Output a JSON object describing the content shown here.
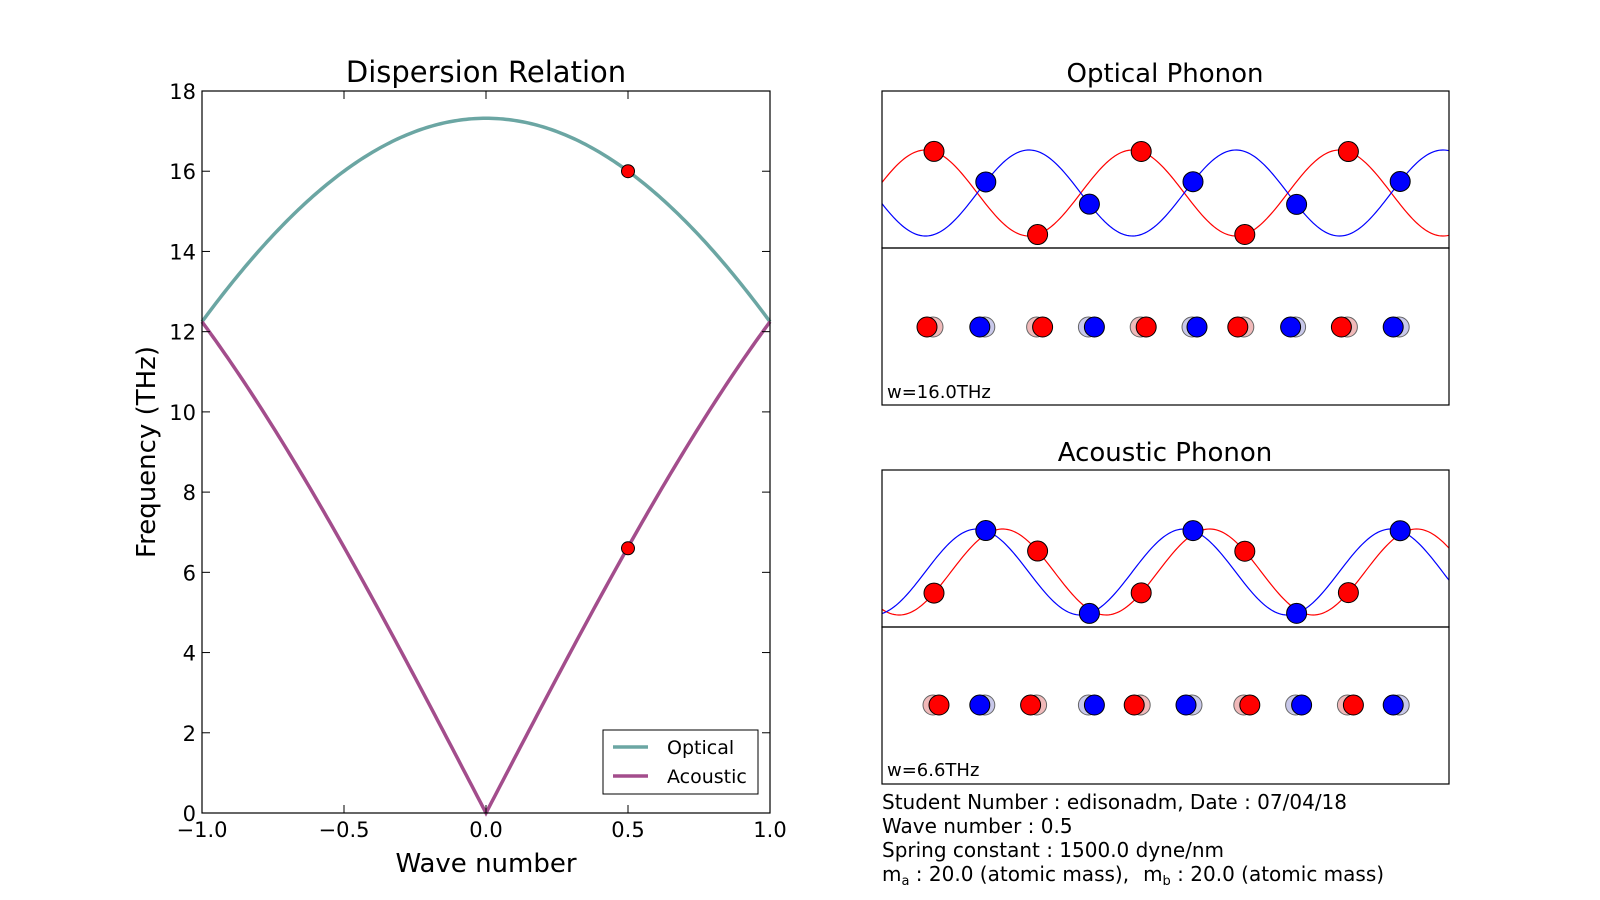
{
  "colors": {
    "optical": "#6ba6a3",
    "acoustic": "#a34d8c",
    "atom_a": "#ff0000",
    "atom_b": "#0000ff",
    "marker": "#ff0000"
  },
  "chart_data": [
    {
      "type": "line",
      "title": "Dispersion Relation",
      "xlabel": "Wave number",
      "ylabel": "Frequency (THz)",
      "xlim": [
        -1.0,
        1.0
      ],
      "ylim": [
        0,
        18
      ],
      "xticks": [
        "−1.0",
        "−0.5",
        "0.0",
        "0.5",
        "1.0"
      ],
      "xtick_values": [
        -1.0,
        -0.5,
        0.0,
        0.5,
        1.0
      ],
      "yticks": [
        "0",
        "2",
        "4",
        "6",
        "8",
        "10",
        "12",
        "14",
        "16",
        "18"
      ],
      "ytick_values": [
        0,
        2,
        4,
        6,
        8,
        10,
        12,
        14,
        16,
        18
      ],
      "grid": false,
      "legend": "bottom-right",
      "series": [
        {
          "name": "Optical",
          "max_frequency": 17.32,
          "edge_frequency": 12.25
        },
        {
          "name": "Acoustic",
          "max_frequency": 0,
          "edge_frequency": 12.25
        }
      ],
      "markers": [
        {
          "x": 0.5,
          "y": 16.0
        },
        {
          "x": 0.5,
          "y": 6.6
        }
      ]
    },
    {
      "type": "line",
      "title": "Optical Phonon",
      "annotation": "w=16.0THz",
      "wave_number": 0.5,
      "mode": "optical"
    },
    {
      "type": "line",
      "title": "Acoustic Phonon",
      "annotation": "w=6.6THz",
      "wave_number": 0.5,
      "mode": "acoustic"
    }
  ],
  "info": {
    "line1": "Student Number : edisonadm,   Date : 07/04/18",
    "line2": "Wave number : 0.5",
    "line3": "Spring constant : 1500.0 dyne/nm",
    "ma_symbol": "m",
    "ma_sub": "a",
    "ma_value": " : 20.0 (atomic mass),",
    "mb_symbol": "m",
    "mb_sub": "b",
    "mb_value": " : 20.0 (atomic mass)"
  }
}
